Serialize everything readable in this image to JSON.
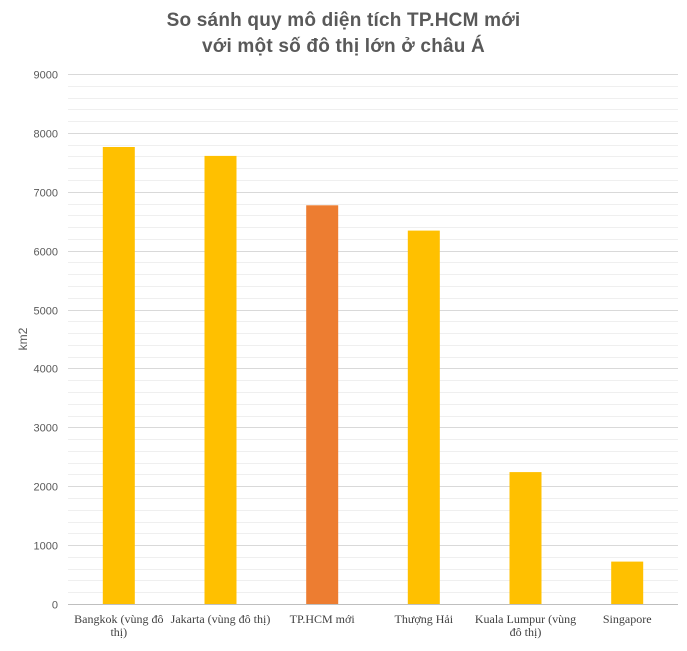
{
  "chart_data": {
    "type": "bar",
    "title_lines": [
      "So sánh quy mô diện tích TP.HCM mới",
      "với một số đô thị lớn ở châu Á"
    ],
    "ylabel": "km2",
    "xlabel": "",
    "ylim": [
      0,
      9000
    ],
    "yticks": [
      0,
      1000,
      2000,
      3000,
      4000,
      5000,
      6000,
      7000,
      8000,
      9000
    ],
    "grid": true,
    "minor_grid": true,
    "legend": "none",
    "categories": [
      [
        "Bangkok (vùng đô",
        "thị)"
      ],
      [
        "Jakarta (vùng đô thị)"
      ],
      [
        "TP.HCM mới"
      ],
      [
        "Thượng Hải"
      ],
      [
        "Kuala Lumpur (vùng",
        "đô thị)"
      ],
      [
        "Singapore"
      ]
    ],
    "values": [
      7760,
      7610,
      6770,
      6340,
      2240,
      720
    ],
    "colors": {
      "default": "#FFC000",
      "highlight": "#ED7D31",
      "highlight_index": 2,
      "grid_major": "#D9D9D9",
      "grid_minor": "#EFEFEF",
      "text": "#595959"
    }
  }
}
